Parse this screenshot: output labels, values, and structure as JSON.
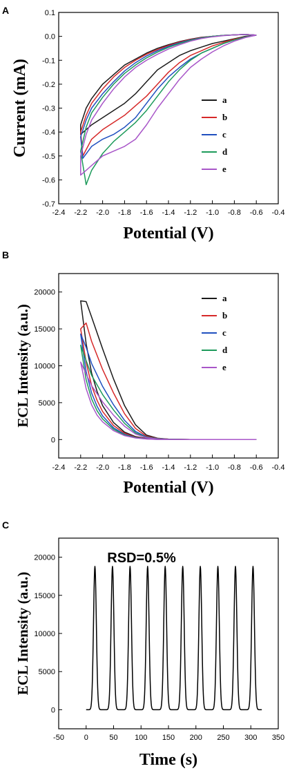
{
  "colors": {
    "a": "#1a1a1a",
    "b": "#d62828",
    "c": "#1f4fbf",
    "d": "#1c9a5a",
    "e": "#a855c8",
    "pulse": "#000000"
  },
  "chart_data": [
    {
      "panel": "A",
      "type": "line",
      "xlabel": "Potential (V)",
      "ylabel": "Current (mA)",
      "xlim": [
        -2.4,
        -0.4
      ],
      "ylim": [
        -0.7,
        0.1
      ],
      "xticks": [
        "-2.4",
        "-2.2",
        "-2.0",
        "-1.8",
        "-1.6",
        "-1.4",
        "-1.2",
        "-1.0",
        "-0.8",
        "-0.6",
        "-0.4"
      ],
      "yticks": [
        "0.1",
        "0.0",
        "-0.1",
        "-0.2",
        "-0.3",
        "-0.4",
        "-0.5",
        "-0.6",
        "-0.7"
      ],
      "legend_position": "right",
      "series": [
        {
          "name": "a",
          "color_key": "a",
          "x": [
            -0.6,
            -0.7,
            -0.8,
            -0.9,
            -1.0,
            -1.1,
            -1.2,
            -1.3,
            -1.4,
            -1.5,
            -1.6,
            -1.7,
            -1.8,
            -1.9,
            -2.0,
            -2.1,
            -2.2,
            -2.2,
            -2.15,
            -2.1,
            -2.0,
            -1.9,
            -1.8,
            -1.7,
            -1.6,
            -1.5,
            -1.4,
            -1.3,
            -1.2,
            -1.1,
            -1.0,
            -0.9,
            -0.8,
            -0.7,
            -0.6
          ],
          "y": [
            0.005,
            0.0,
            -0.01,
            -0.02,
            -0.03,
            -0.045,
            -0.06,
            -0.08,
            -0.11,
            -0.14,
            -0.19,
            -0.24,
            -0.28,
            -0.31,
            -0.34,
            -0.37,
            -0.41,
            -0.37,
            -0.3,
            -0.26,
            -0.2,
            -0.16,
            -0.12,
            -0.095,
            -0.07,
            -0.05,
            -0.035,
            -0.022,
            -0.012,
            -0.004,
            0.0,
            0.004,
            0.006,
            0.008,
            0.005
          ]
        },
        {
          "name": "b",
          "color_key": "b",
          "x": [
            -0.6,
            -0.7,
            -0.8,
            -0.9,
            -1.0,
            -1.1,
            -1.2,
            -1.3,
            -1.4,
            -1.5,
            -1.6,
            -1.7,
            -1.8,
            -1.9,
            -2.0,
            -2.1,
            -2.18,
            -2.2,
            -2.15,
            -2.1,
            -2.0,
            -1.9,
            -1.8,
            -1.7,
            -1.6,
            -1.5,
            -1.4,
            -1.3,
            -1.2,
            -1.1,
            -1.0,
            -0.9,
            -0.8,
            -0.7,
            -0.6
          ],
          "y": [
            0.005,
            -0.002,
            -0.012,
            -0.025,
            -0.04,
            -0.06,
            -0.08,
            -0.11,
            -0.15,
            -0.2,
            -0.25,
            -0.29,
            -0.33,
            -0.36,
            -0.39,
            -0.43,
            -0.5,
            -0.4,
            -0.33,
            -0.28,
            -0.22,
            -0.17,
            -0.13,
            -0.1,
            -0.075,
            -0.055,
            -0.038,
            -0.024,
            -0.013,
            -0.005,
            0.0,
            0.004,
            0.006,
            0.008,
            0.005
          ]
        },
        {
          "name": "c",
          "color_key": "c",
          "x": [
            -0.6,
            -0.7,
            -0.8,
            -0.9,
            -1.0,
            -1.1,
            -1.2,
            -1.3,
            -1.4,
            -1.5,
            -1.6,
            -1.7,
            -1.8,
            -1.9,
            -2.0,
            -2.1,
            -2.18,
            -2.2,
            -2.15,
            -2.1,
            -2.0,
            -1.9,
            -1.8,
            -1.7,
            -1.6,
            -1.5,
            -1.4,
            -1.3,
            -1.2,
            -1.1,
            -1.0,
            -0.9,
            -0.8,
            -0.7,
            -0.6
          ],
          "y": [
            0.005,
            -0.003,
            -0.015,
            -0.03,
            -0.05,
            -0.07,
            -0.095,
            -0.13,
            -0.17,
            -0.22,
            -0.28,
            -0.34,
            -0.38,
            -0.41,
            -0.43,
            -0.46,
            -0.51,
            -0.42,
            -0.35,
            -0.3,
            -0.24,
            -0.19,
            -0.145,
            -0.11,
            -0.082,
            -0.06,
            -0.042,
            -0.027,
            -0.015,
            -0.006,
            0.0,
            0.004,
            0.006,
            0.008,
            0.005
          ]
        },
        {
          "name": "d",
          "color_key": "d",
          "x": [
            -0.6,
            -0.7,
            -0.8,
            -0.9,
            -1.0,
            -1.1,
            -1.2,
            -1.3,
            -1.4,
            -1.5,
            -1.6,
            -1.7,
            -1.8,
            -1.9,
            -2.0,
            -2.1,
            -2.15,
            -2.2,
            -2.15,
            -2.1,
            -2.0,
            -1.9,
            -1.8,
            -1.7,
            -1.6,
            -1.5,
            -1.4,
            -1.3,
            -1.2,
            -1.1,
            -1.0,
            -0.9,
            -0.8,
            -0.7,
            -0.6
          ],
          "y": [
            0.005,
            -0.003,
            -0.015,
            -0.03,
            -0.05,
            -0.07,
            -0.1,
            -0.14,
            -0.19,
            -0.25,
            -0.31,
            -0.36,
            -0.4,
            -0.44,
            -0.49,
            -0.56,
            -0.62,
            -0.48,
            -0.38,
            -0.32,
            -0.255,
            -0.2,
            -0.155,
            -0.12,
            -0.09,
            -0.066,
            -0.046,
            -0.03,
            -0.017,
            -0.007,
            0.0,
            0.004,
            0.006,
            0.008,
            0.005
          ]
        },
        {
          "name": "e",
          "color_key": "e",
          "x": [
            -0.6,
            -0.7,
            -0.8,
            -0.9,
            -1.0,
            -1.1,
            -1.2,
            -1.3,
            -1.4,
            -1.5,
            -1.6,
            -1.7,
            -1.8,
            -1.9,
            -2.0,
            -2.1,
            -2.2,
            -2.2,
            -2.15,
            -2.1,
            -2.0,
            -1.9,
            -1.8,
            -1.7,
            -1.6,
            -1.5,
            -1.4,
            -1.3,
            -1.2,
            -1.1,
            -1.0,
            -0.9,
            -0.8,
            -0.7,
            -0.6
          ],
          "y": [
            0.005,
            -0.005,
            -0.02,
            -0.04,
            -0.065,
            -0.095,
            -0.13,
            -0.18,
            -0.24,
            -0.3,
            -0.37,
            -0.43,
            -0.46,
            -0.48,
            -0.5,
            -0.54,
            -0.58,
            -0.5,
            -0.41,
            -0.35,
            -0.28,
            -0.22,
            -0.17,
            -0.13,
            -0.1,
            -0.075,
            -0.053,
            -0.035,
            -0.02,
            -0.009,
            -0.002,
            0.003,
            0.006,
            0.008,
            0.005
          ]
        }
      ]
    },
    {
      "panel": "B",
      "type": "line",
      "xlabel": "Potential (V)",
      "ylabel": "ECL Intensity (a.u.)",
      "xlim": [
        -2.4,
        -0.4
      ],
      "ylim": [
        -2500,
        22500
      ],
      "xticks": [
        "-2.4",
        "-2.2",
        "-2.0",
        "-1.8",
        "-1.6",
        "-1.4",
        "-1.2",
        "-1.0",
        "-0.8",
        "-0.6",
        "-0.4"
      ],
      "yticks": [
        "20000",
        "15000",
        "10000",
        "5000",
        "0"
      ],
      "legend_position": "right",
      "series": [
        {
          "name": "a",
          "color_key": "a",
          "x": [
            -0.6,
            -1.2,
            -1.4,
            -1.5,
            -1.6,
            -1.7,
            -1.8,
            -1.9,
            -2.0,
            -2.1,
            -2.15,
            -2.2,
            -2.15,
            -2.1,
            -2.05,
            -2.0,
            -1.9,
            -1.8,
            -1.7,
            -1.6,
            -1.5,
            -1.4,
            -1.2,
            -0.6
          ],
          "y": [
            0,
            0,
            60,
            180,
            600,
            2000,
            4600,
            8200,
            12300,
            16600,
            18700,
            18800,
            13000,
            9000,
            6500,
            4600,
            2300,
            1000,
            400,
            150,
            40,
            10,
            0,
            0
          ]
        },
        {
          "name": "b",
          "color_key": "b",
          "x": [
            -0.6,
            -1.2,
            -1.4,
            -1.5,
            -1.6,
            -1.7,
            -1.8,
            -1.9,
            -2.0,
            -2.1,
            -2.15,
            -2.2,
            -2.15,
            -2.1,
            -2.05,
            -2.0,
            -1.9,
            -1.8,
            -1.7,
            -1.6,
            -1.5,
            -1.4,
            -1.2,
            -0.6
          ],
          "y": [
            0,
            0,
            50,
            150,
            450,
            1500,
            3500,
            6300,
            9500,
            13300,
            15800,
            15000,
            10500,
            7300,
            5300,
            3800,
            1900,
            850,
            330,
            120,
            35,
            8,
            0,
            0
          ]
        },
        {
          "name": "c",
          "color_key": "c",
          "x": [
            -0.6,
            -1.2,
            -1.4,
            -1.5,
            -1.6,
            -1.7,
            -1.8,
            -1.9,
            -2.0,
            -2.1,
            -2.15,
            -2.2,
            -2.15,
            -2.1,
            -2.05,
            -2.0,
            -1.9,
            -1.8,
            -1.7,
            -1.6,
            -1.5,
            -1.4,
            -1.2,
            -0.6
          ],
          "y": [
            0,
            0,
            40,
            120,
            350,
            1100,
            2600,
            4700,
            7200,
            10300,
            12500,
            14300,
            9200,
            6300,
            4500,
            3200,
            1600,
            700,
            280,
            100,
            30,
            6,
            0,
            0
          ]
        },
        {
          "name": "d",
          "color_key": "d",
          "x": [
            -0.6,
            -1.2,
            -1.4,
            -1.5,
            -1.6,
            -1.7,
            -1.8,
            -1.9,
            -2.0,
            -2.1,
            -2.15,
            -2.2,
            -2.15,
            -2.1,
            -2.05,
            -2.0,
            -1.9,
            -1.8,
            -1.7,
            -1.6,
            -1.5,
            -1.4,
            -1.2,
            -0.6
          ],
          "y": [
            0,
            0,
            35,
            100,
            300,
            900,
            2200,
            4000,
            6100,
            8700,
            10700,
            12800,
            8100,
            5500,
            3900,
            2800,
            1400,
            620,
            240,
            90,
            25,
            5,
            0,
            0
          ]
        },
        {
          "name": "e",
          "color_key": "e",
          "x": [
            -0.6,
            -1.2,
            -1.4,
            -1.5,
            -1.6,
            -1.7,
            -1.8,
            -1.9,
            -2.0,
            -2.1,
            -2.15,
            -2.2,
            -2.15,
            -2.1,
            -2.05,
            -2.0,
            -1.9,
            -1.8,
            -1.7,
            -1.6,
            -1.5,
            -1.4,
            -1.2,
            -0.6
          ],
          "y": [
            0,
            0,
            30,
            80,
            250,
            750,
            1800,
            3300,
            5100,
            7300,
            8900,
            10500,
            6900,
            4700,
            3300,
            2400,
            1200,
            530,
            210,
            80,
            22,
            4,
            0,
            0
          ]
        }
      ]
    },
    {
      "panel": "C",
      "type": "line",
      "xlabel": "Time (s)",
      "ylabel": "ECL Intensity (a.u.)",
      "xlim": [
        -50,
        350
      ],
      "ylim": [
        -2500,
        22500
      ],
      "xticks": [
        "-50",
        "0",
        "50",
        "100",
        "150",
        "200",
        "250",
        "300",
        "350"
      ],
      "yticks": [
        "20000",
        "15000",
        "10000",
        "5000",
        "0"
      ],
      "annotation": "RSD=0.5%",
      "series": [
        {
          "color_key": "pulse",
          "peak_times": [
            16,
            48,
            80,
            112,
            144,
            176,
            208,
            240,
            272,
            304
          ],
          "peak_values": [
            18800,
            18800,
            18800,
            18800,
            18800,
            18800,
            18800,
            18800,
            18800,
            18800
          ],
          "baseline": 0,
          "x_range": [
            0,
            320
          ]
        }
      ]
    }
  ]
}
